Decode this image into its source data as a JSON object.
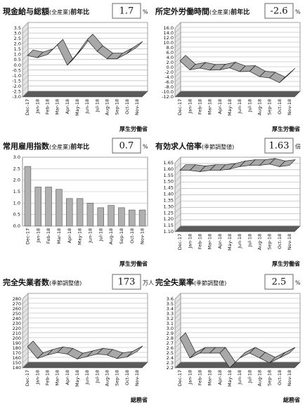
{
  "chart_data": [
    {
      "type": "line3d",
      "title": "現金給与総額",
      "qualifier": "(全産業)",
      "suffix": "前年比",
      "current": 1.7,
      "unit": "%",
      "source": "厚生労働省",
      "color": "#a8a8a8",
      "categories": [
        "Dec-17",
        "Jan-18",
        "Feb-18",
        "Mar-18",
        "Apr-18",
        "May-18",
        "Jun-18",
        "Jul-18",
        "Aug-18",
        "Sep-18",
        "Oct-18",
        "Nov-18"
      ],
      "values": [
        0.9,
        0.7,
        1.0,
        1.9,
        0.0,
        1.1,
        2.4,
        1.3,
        0.6,
        0.6,
        1.1,
        1.7
      ],
      "ylim": [
        -3.0,
        3.5
      ],
      "yticks": [
        {
          "value": -3,
          "label": "-3.0"
        },
        -2.5,
        {
          "value": -2,
          "label": "-2.0"
        },
        -1.5,
        {
          "value": -1,
          "label": "-1.0"
        },
        -0.5,
        {
          "value": 0,
          "label": "0.0"
        },
        0.5,
        {
          "value": 1,
          "label": "1.0"
        },
        1.5,
        {
          "value": 2,
          "label": "2.0"
        },
        2.5,
        {
          "value": 3,
          "label": "3.0"
        },
        3.5
      ]
    },
    {
      "type": "line3d",
      "title": "所定外労働時間",
      "qualifier": "(全産業)",
      "suffix": "前年比",
      "current": -2.6,
      "unit": "%",
      "source": "厚生労働省",
      "color": "#a8a8a8",
      "categories": [
        "Dec-17",
        "Jan-18",
        "Feb-18",
        "Mar-18",
        "Apr-18",
        "May-18",
        "Jun-18",
        "Jul-18",
        "Aug-18",
        "Sep-18",
        "Oct-18",
        "Nov-18"
      ],
      "values": [
        2.6,
        -1.0,
        -0.3,
        -1.1,
        -1.0,
        -0.2,
        -1.7,
        -1.6,
        -3.8,
        -4.3,
        -6.2,
        -2.6
      ],
      "ylim": [
        -12,
        16
      ],
      "yticks": [
        {
          "value": -12,
          "label": "-12.0"
        },
        {
          "value": -10,
          "label": "-10.0"
        },
        {
          "value": -8,
          "label": "-8.0"
        },
        {
          "value": -6,
          "label": "-6.0"
        },
        {
          "value": -4,
          "label": "-4.0"
        },
        {
          "value": -2,
          "label": "-2.0"
        },
        {
          "value": 0,
          "label": "0.0"
        },
        {
          "value": 2,
          "label": "2.0"
        },
        {
          "value": 4,
          "label": "4.0"
        },
        {
          "value": 6,
          "label": "6.0"
        },
        {
          "value": 8,
          "label": "8.0"
        },
        {
          "value": 10,
          "label": "10.0"
        },
        {
          "value": 12,
          "label": "12.0"
        },
        {
          "value": 14,
          "label": "14.0"
        },
        {
          "value": 16,
          "label": "16.0"
        }
      ]
    },
    {
      "type": "bar",
      "title": "常用雇用指数",
      "qualifier": "(全産業)",
      "suffix": "前年比",
      "current": 0.7,
      "unit": "%",
      "source": "厚生労働省",
      "color": "#b0b0b0",
      "categories": [
        "Dec-17",
        "Jan-18",
        "Feb-18",
        "Mar-18",
        "Apr-18",
        "May-18",
        "Jun-18",
        "Jul-18",
        "Aug-18",
        "Sep-18",
        "Oct-18",
        "Nov-18"
      ],
      "values": [
        2.6,
        1.7,
        1.7,
        1.6,
        1.2,
        1.2,
        1.0,
        0.8,
        0.9,
        0.8,
        0.7,
        0.7
      ],
      "ylim": [
        0,
        3.0
      ],
      "yticks": [
        {
          "value": 0,
          "label": "0.0"
        },
        0.5,
        {
          "value": 1,
          "label": "1.0"
        },
        1.5,
        {
          "value": 2,
          "label": "2.0"
        },
        2.5,
        {
          "value": 3,
          "label": "3.0"
        }
      ]
    },
    {
      "type": "line3d",
      "title": "有効求人倍率",
      "qualifier": "(季節調整値)",
      "current": 1.63,
      "unit": "倍",
      "source": "厚生労働省",
      "color": "#a8a8a8",
      "categories": [
        "Dec-17",
        "Jan-18",
        "Feb-18",
        "Mar-18",
        "Apr-18",
        "May-18",
        "Jun-18",
        "Jul-18",
        "Aug-18",
        "Sep-18",
        "Oct-18",
        "Nov-18"
      ],
      "values": [
        1.59,
        1.59,
        1.58,
        1.59,
        1.59,
        1.6,
        1.62,
        1.63,
        1.63,
        1.64,
        1.62,
        1.63
      ],
      "ylim": [
        1.1,
        1.65
      ],
      "yticks": [
        {
          "value": 1.1,
          "label": "1.10"
        },
        1.15,
        {
          "value": 1.2,
          "label": "1.20"
        },
        1.25,
        {
          "value": 1.3,
          "label": "1.30"
        },
        1.35,
        {
          "value": 1.4,
          "label": "1.40"
        },
        1.45,
        {
          "value": 1.5,
          "label": "1.50"
        },
        1.55,
        {
          "value": 1.6,
          "label": "1.60"
        },
        1.65
      ]
    },
    {
      "type": "line3d",
      "title": "完全失業者数",
      "qualifier": "(季節調整値)",
      "current": 173,
      "unit": "万人",
      "source": "総務省",
      "color": "#a8a8a8",
      "categories": [
        "Dec-17",
        "Jan-18",
        "Feb-18",
        "Mar-18",
        "Apr-18",
        "May-18",
        "Jun-18",
        "Jul-18",
        "Aug-18",
        "Sep-18",
        "Oct-18",
        "Nov-18"
      ],
      "values": [
        183,
        159,
        166,
        171,
        168,
        158,
        163,
        168,
        166,
        159,
        162,
        173
      ],
      "ylim": [
        140,
        280
      ],
      "yticks": [
        140,
        150,
        160,
        170,
        180,
        190,
        200,
        210,
        220,
        230,
        240,
        250,
        260,
        270,
        280
      ]
    },
    {
      "type": "line3d",
      "title": "完全失業率",
      "qualifier": "(季節調整値)",
      "current": 2.5,
      "unit": "%",
      "source": "総務省",
      "color": "#a8a8a8",
      "categories": [
        "Dec-17",
        "Jan-18",
        "Feb-18",
        "Mar-18",
        "Apr-18",
        "May-18",
        "Jun-18",
        "Jul-18",
        "Aug-18",
        "Sep-18",
        "Oct-18",
        "Nov-18"
      ],
      "values": [
        2.8,
        2.4,
        2.5,
        2.5,
        2.5,
        2.2,
        2.4,
        2.5,
        2.4,
        2.3,
        2.4,
        2.5
      ],
      "ylim": [
        2.2,
        3.6
      ],
      "yticks": [
        2.2,
        2.3,
        2.4,
        2.5,
        2.6,
        2.7,
        2.8,
        2.9,
        {
          "value": 3,
          "label": "3.0"
        },
        3.1,
        3.2,
        3.3,
        3.4,
        3.5,
        3.6
      ]
    }
  ]
}
